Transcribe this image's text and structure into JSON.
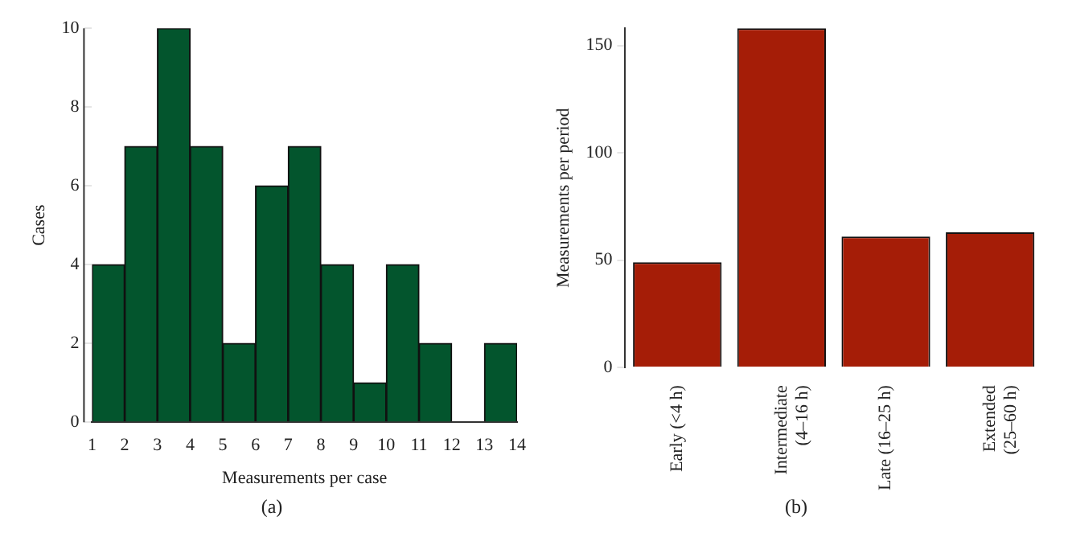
{
  "chart_data": [
    {
      "type": "histogram",
      "bins": [
        1,
        2,
        3,
        4,
        5,
        6,
        7,
        8,
        9,
        10,
        11,
        12,
        13,
        14
      ],
      "values": [
        4,
        7,
        10,
        7,
        2,
        6,
        7,
        4,
        1,
        4,
        2,
        0,
        2
      ],
      "color": "#03552d",
      "xlabel": "Measurements per case",
      "ylabel": "Cases",
      "xlim": [
        1,
        14
      ],
      "xticks": [
        1,
        2,
        3,
        4,
        5,
        6,
        7,
        8,
        9,
        10,
        11,
        12,
        13,
        14
      ],
      "ylim": [
        0,
        10
      ],
      "yticks": [
        0,
        2,
        4,
        6,
        8,
        10
      ],
      "grid": false,
      "annotations": [
        "(a)"
      ]
    },
    {
      "type": "bar",
      "categories": [
        "Early (<4 h)",
        "Intermediate (4–16 h)",
        "Late (16–25 h)",
        "Extended (25–60 h)"
      ],
      "values": [
        49,
        158,
        61,
        63
      ],
      "color": "#a51d07",
      "ylabel": "Measurements per period",
      "ylim": [
        0,
        158
      ],
      "yticks": [
        0,
        50,
        100,
        150
      ],
      "grid": false,
      "annotations": [
        "(b)"
      ]
    }
  ]
}
